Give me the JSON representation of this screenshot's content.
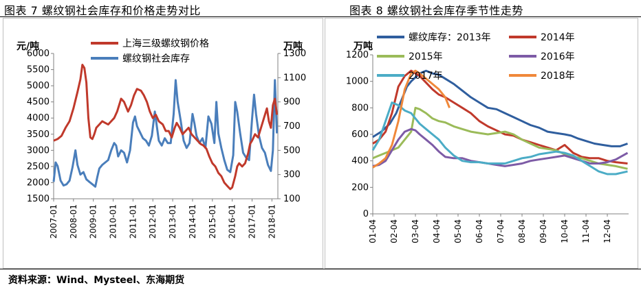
{
  "figures": {
    "left_title": "图表 7 螺纹钢社会库存和价格走势对比",
    "right_title": "图表 8 螺纹钢社会库存季节性走势"
  },
  "source_note": "资料来源：Wind、Mysteel、东海期货",
  "chart_data": [
    {
      "type": "line",
      "title": "螺纹钢社会库存和价格走势对比",
      "left_axis_label": "元/吨",
      "right_axis_label": "万吨",
      "ylim_left": [
        1500,
        6000
      ],
      "yticks_left": [
        "1500",
        "2000",
        "2500",
        "3000",
        "3500",
        "4000",
        "4500",
        "5000",
        "5500",
        "6000"
      ],
      "ylim_right": [
        100,
        1300
      ],
      "yticks_right": [
        "100",
        "300",
        "500",
        "700",
        "900",
        "1100",
        "1300"
      ],
      "xlim": [
        2007.0,
        2018.3
      ],
      "xticks": [
        "2007-01",
        "2008-01",
        "2009-01",
        "2010-01",
        "2011-01",
        "2012-01",
        "2013-01",
        "2014-01",
        "2015-01",
        "2016-01",
        "2017-01",
        "2018-01"
      ],
      "series": [
        {
          "name": "上海三级螺纹钢价格",
          "axis": "left",
          "color": "#c0392b",
          "x": [
            2007.0,
            2007.2,
            2007.4,
            2007.6,
            2007.8,
            2008.0,
            2008.2,
            2008.35,
            2008.45,
            2008.55,
            2008.65,
            2008.75,
            2008.85,
            2008.95,
            2009.05,
            2009.15,
            2009.3,
            2009.45,
            2009.6,
            2009.75,
            2009.9,
            2010.05,
            2010.2,
            2010.4,
            2010.55,
            2010.75,
            2010.9,
            2011.05,
            2011.2,
            2011.4,
            2011.55,
            2011.7,
            2011.85,
            2012.0,
            2012.15,
            2012.3,
            2012.5,
            2012.65,
            2012.8,
            2012.95,
            2013.1,
            2013.2,
            2013.35,
            2013.5,
            2013.65,
            2013.8,
            2013.95,
            2014.1,
            2014.25,
            2014.4,
            2014.55,
            2014.7,
            2014.85,
            2015.0,
            2015.15,
            2015.3,
            2015.45,
            2015.6,
            2015.75,
            2015.9,
            2016.0,
            2016.15,
            2016.25,
            2016.35,
            2016.5,
            2016.65,
            2016.8,
            2016.9,
            2017.0,
            2017.15,
            2017.3,
            2017.45,
            2017.6,
            2017.75,
            2017.85,
            2017.95,
            2018.05,
            2018.15,
            2018.25
          ],
          "values": [
            3300,
            3350,
            3450,
            3700,
            3900,
            4300,
            4800,
            5200,
            5650,
            5550,
            5100,
            4000,
            3400,
            3350,
            3500,
            3700,
            3800,
            3900,
            3850,
            3800,
            3900,
            4000,
            4200,
            4600,
            4500,
            4200,
            4400,
            4700,
            4900,
            4850,
            4700,
            4500,
            4200,
            4000,
            4100,
            3900,
            3800,
            3600,
            3600,
            3400,
            3700,
            3850,
            3700,
            3500,
            3600,
            3700,
            3500,
            3400,
            3300,
            3200,
            3150,
            3050,
            2800,
            2600,
            2500,
            2300,
            2200,
            2000,
            1900,
            1800,
            1850,
            2200,
            2500,
            2600,
            2500,
            2600,
            2900,
            3200,
            3300,
            3500,
            3400,
            3700,
            4000,
            4300,
            3900,
            3700,
            4400,
            4600,
            4100
          ]
        },
        {
          "name": "螺纹钢社会库存",
          "axis": "right",
          "color": "#4a7ebb",
          "x": [
            2007.0,
            2007.1,
            2007.2,
            2007.35,
            2007.5,
            2007.65,
            2007.8,
            2007.95,
            2008.1,
            2008.2,
            2008.35,
            2008.5,
            2008.65,
            2008.8,
            2008.95,
            2009.1,
            2009.2,
            2009.3,
            2009.45,
            2009.6,
            2009.75,
            2009.9,
            2010.05,
            2010.15,
            2010.25,
            2010.4,
            2010.55,
            2010.7,
            2010.85,
            2011.0,
            2011.1,
            2011.2,
            2011.35,
            2011.5,
            2011.65,
            2011.8,
            2011.95,
            2012.1,
            2012.2,
            2012.3,
            2012.45,
            2012.6,
            2012.75,
            2012.9,
            2013.05,
            2013.15,
            2013.25,
            2013.4,
            2013.55,
            2013.7,
            2013.85,
            2014.0,
            2014.1,
            2014.2,
            2014.35,
            2014.5,
            2014.65,
            2014.8,
            2014.95,
            2015.1,
            2015.2,
            2015.3,
            2015.45,
            2015.6,
            2015.75,
            2015.9,
            2016.05,
            2016.15,
            2016.25,
            2016.4,
            2016.55,
            2016.7,
            2016.85,
            2017.0,
            2017.1,
            2017.2,
            2017.35,
            2017.5,
            2017.65,
            2017.8,
            2017.95,
            2018.05,
            2018.15,
            2018.25
          ],
          "values": [
            240,
            400,
            370,
            250,
            210,
            220,
            250,
            360,
            500,
            380,
            300,
            320,
            260,
            240,
            220,
            200,
            280,
            350,
            380,
            400,
            420,
            500,
            560,
            540,
            450,
            500,
            480,
            400,
            500,
            730,
            780,
            700,
            650,
            600,
            580,
            540,
            620,
            820,
            700,
            580,
            540,
            600,
            560,
            560,
            800,
            1080,
            900,
            750,
            580,
            520,
            560,
            800,
            720,
            620,
            560,
            600,
            520,
            780,
            720,
            560,
            900,
            640,
            520,
            420,
            340,
            320,
            460,
            900,
            820,
            640,
            480,
            440,
            420,
            760,
            960,
            800,
            620,
            520,
            480,
            380,
            330,
            500,
            1080,
            640
          ]
        }
      ]
    },
    {
      "type": "line",
      "title": "螺纹钢社会库存季节性走势",
      "y_axis_label": "万吨",
      "ylim": [
        0,
        1200
      ],
      "yticks": [
        "0",
        "200",
        "400",
        "600",
        "800",
        "1000",
        "1200"
      ],
      "xlim": [
        1.0,
        12.999
      ],
      "xticks": [
        "01-04",
        "02-04",
        "03-04",
        "04-04",
        "05-04",
        "06-04",
        "07-04",
        "08-04",
        "09-04",
        "10-04",
        "11-04",
        "12-04"
      ],
      "series": [
        {
          "name": "螺纹库存：2013年",
          "color": "#2f5e9e",
          "x": [
            1.0,
            1.4,
            1.8,
            2.1,
            2.4,
            2.6,
            2.8,
            3.0,
            3.2,
            3.5,
            3.8,
            4.1,
            4.4,
            4.8,
            5.2,
            5.6,
            6.0,
            6.4,
            6.8,
            7.2,
            7.6,
            8.0,
            8.4,
            8.8,
            9.2,
            9.6,
            10.0,
            10.3,
            10.6,
            11.0,
            11.4,
            11.8,
            12.2,
            12.6,
            12.95
          ],
          "values": [
            580,
            620,
            680,
            760,
            880,
            960,
            1000,
            1030,
            1060,
            1080,
            1060,
            1050,
            1020,
            980,
            930,
            880,
            840,
            800,
            790,
            760,
            730,
            700,
            670,
            650,
            620,
            610,
            600,
            590,
            570,
            550,
            530,
            520,
            510,
            510,
            530
          ]
        },
        {
          "name": "2014年",
          "color": "#c0392b",
          "x": [
            1.0,
            1.3,
            1.6,
            1.9,
            2.2,
            2.5,
            2.8,
            3.0,
            3.2,
            3.5,
            3.8,
            4.1,
            4.4,
            4.8,
            5.2,
            5.6,
            6.0,
            6.4,
            6.8,
            7.2,
            7.6,
            8.0,
            8.4,
            8.8,
            9.2,
            9.6,
            10.0,
            10.4,
            10.8,
            11.2,
            11.6,
            12.0,
            12.4,
            12.95
          ],
          "values": [
            530,
            560,
            620,
            760,
            960,
            1040,
            1080,
            1060,
            1040,
            990,
            940,
            900,
            880,
            840,
            800,
            760,
            700,
            660,
            630,
            600,
            590,
            560,
            540,
            520,
            500,
            480,
            520,
            460,
            430,
            420,
            420,
            400,
            390,
            380
          ]
        },
        {
          "name": "2015年",
          "color": "#9bbb59",
          "x": [
            1.0,
            1.3,
            1.6,
            1.9,
            2.2,
            2.5,
            2.8,
            3.0,
            3.2,
            3.5,
            3.8,
            4.1,
            4.4,
            4.8,
            5.2,
            5.6,
            6.0,
            6.4,
            6.8,
            7.2,
            7.6,
            8.0,
            8.4,
            8.8,
            9.2,
            9.6,
            10.0,
            10.4,
            10.8,
            11.2,
            11.6,
            12.0,
            12.4,
            12.95
          ],
          "values": [
            420,
            440,
            460,
            480,
            500,
            560,
            620,
            800,
            790,
            760,
            720,
            700,
            690,
            660,
            640,
            620,
            610,
            600,
            610,
            620,
            600,
            560,
            530,
            500,
            490,
            480,
            450,
            430,
            420,
            400,
            380,
            370,
            360,
            340
          ]
        },
        {
          "name": "2016年",
          "color": "#7d5ba6",
          "x": [
            1.0,
            1.3,
            1.6,
            1.9,
            2.2,
            2.5,
            2.8,
            3.0,
            3.2,
            3.5,
            3.8,
            4.1,
            4.4,
            4.8,
            5.2,
            5.6,
            6.0,
            6.4,
            6.8,
            7.2,
            7.6,
            8.0,
            8.4,
            8.8,
            9.2,
            9.6,
            10.0,
            10.4,
            10.8,
            11.2,
            11.6,
            12.0,
            12.4,
            12.95
          ],
          "values": [
            360,
            370,
            400,
            480,
            560,
            620,
            640,
            630,
            600,
            560,
            520,
            470,
            430,
            420,
            420,
            400,
            390,
            380,
            370,
            360,
            370,
            380,
            400,
            410,
            420,
            430,
            440,
            420,
            400,
            380,
            380,
            390,
            410,
            460
          ]
        },
        {
          "name": "2017年",
          "color": "#4bacc6",
          "x": [
            1.0,
            1.3,
            1.6,
            1.9,
            2.2,
            2.5,
            2.8,
            3.0,
            3.2,
            3.5,
            3.8,
            4.1,
            4.4,
            4.8,
            5.2,
            5.6,
            6.0,
            6.4,
            6.8,
            7.2,
            7.6,
            8.0,
            8.4,
            8.8,
            9.2,
            9.6,
            10.0,
            10.4,
            10.8,
            11.2,
            11.6,
            12.0,
            12.4,
            12.95
          ],
          "values": [
            480,
            560,
            700,
            840,
            820,
            780,
            760,
            720,
            680,
            640,
            600,
            560,
            500,
            440,
            400,
            390,
            390,
            380,
            380,
            380,
            400,
            420,
            430,
            450,
            460,
            470,
            460,
            440,
            400,
            360,
            320,
            300,
            300,
            320
          ]
        },
        {
          "name": "2018年",
          "color": "#f0883a",
          "x": [
            1.0,
            1.3,
            1.6,
            1.9,
            2.2,
            2.5,
            2.8,
            3.0,
            3.2,
            3.5,
            3.8,
            4.1,
            4.4,
            4.6
          ],
          "values": [
            350,
            380,
            420,
            520,
            700,
            940,
            1060,
            1080,
            1060,
            1020,
            980,
            940,
            880,
            800
          ]
        }
      ]
    }
  ]
}
